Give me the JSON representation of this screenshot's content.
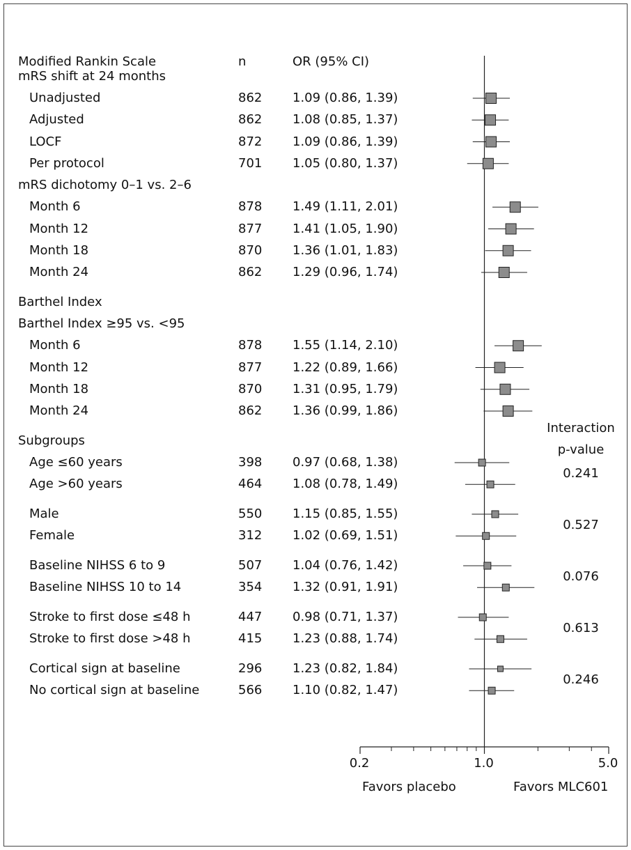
{
  "chart_data": {
    "type": "forest",
    "x_scale": "log",
    "xlim": [
      0.2,
      5.0
    ],
    "null_value": 1.0,
    "xticks": [
      {
        "value": 0.2,
        "label": "0.2"
      },
      {
        "value": 1.0,
        "label": "1.0"
      },
      {
        "value": 5.0,
        "label": "5.0"
      }
    ],
    "minor_ticks": [
      0.3,
      0.4,
      0.5,
      0.6,
      0.7,
      0.8,
      0.9,
      2,
      3,
      4
    ],
    "direction_labels": {
      "left": "Favors placebo",
      "right": "Favors MLC601"
    },
    "column_headers": {
      "label": "Modified Rankin Scale",
      "n": "n",
      "or": "OR (95% CI)"
    },
    "interaction_header": [
      "Interaction",
      "p-value"
    ],
    "rows": [
      {
        "label": "mRS shift at 24 months",
        "indent": 0
      },
      {
        "label": "Unadjusted",
        "indent": 1,
        "n": "862",
        "or_text": "1.09 (0.86, 1.39)",
        "or": 1.09,
        "lo": 0.86,
        "hi": 1.39,
        "size": "large"
      },
      {
        "label": "Adjusted",
        "indent": 1,
        "n": "862",
        "or_text": "1.08 (0.85, 1.37)",
        "or": 1.08,
        "lo": 0.85,
        "hi": 1.37,
        "size": "large"
      },
      {
        "label": "LOCF",
        "indent": 1,
        "n": "872",
        "or_text": "1.09 (0.86, 1.39)",
        "or": 1.09,
        "lo": 0.86,
        "hi": 1.39,
        "size": "large"
      },
      {
        "label": "Per protocol",
        "indent": 1,
        "n": "701",
        "or_text": "1.05 (0.80, 1.37)",
        "or": 1.05,
        "lo": 0.8,
        "hi": 1.37,
        "size": "large"
      },
      {
        "label": "mRS dichotomy 0–1 vs. 2–6",
        "indent": 0
      },
      {
        "label": "Month 6",
        "indent": 1,
        "n": "878",
        "or_text": "1.49 (1.11, 2.01)",
        "or": 1.49,
        "lo": 1.11,
        "hi": 2.01,
        "size": "large"
      },
      {
        "label": "Month 12",
        "indent": 1,
        "n": "877",
        "or_text": "1.41 (1.05, 1.90)",
        "or": 1.41,
        "lo": 1.05,
        "hi": 1.9,
        "size": "large"
      },
      {
        "label": "Month 18",
        "indent": 1,
        "n": "870",
        "or_text": "1.36 (1.01, 1.83)",
        "or": 1.36,
        "lo": 1.01,
        "hi": 1.83,
        "size": "large"
      },
      {
        "label": "Month 24",
        "indent": 1,
        "n": "862",
        "or_text": "1.29 (0.96, 1.74)",
        "or": 1.29,
        "lo": 0.96,
        "hi": 1.74,
        "size": "large"
      },
      {
        "label": "Barthel Index",
        "indent": 0,
        "gap_before": true
      },
      {
        "label": "Barthel Index ≥95 vs. <95",
        "indent": 0
      },
      {
        "label": "Month 6",
        "indent": 1,
        "n": "878",
        "or_text": "1.55 (1.14, 2.10)",
        "or": 1.55,
        "lo": 1.14,
        "hi": 2.1,
        "size": "large"
      },
      {
        "label": "Month 12",
        "indent": 1,
        "n": "877",
        "or_text": "1.22 (0.89, 1.66)",
        "or": 1.22,
        "lo": 0.89,
        "hi": 1.66,
        "size": "large"
      },
      {
        "label": "Month 18",
        "indent": 1,
        "n": "870",
        "or_text": "1.31 (0.95, 1.79)",
        "or": 1.31,
        "lo": 0.95,
        "hi": 1.79,
        "size": "large"
      },
      {
        "label": "Month 24",
        "indent": 1,
        "n": "862",
        "or_text": "1.36 (0.99, 1.86)",
        "or": 1.36,
        "lo": 0.99,
        "hi": 1.86,
        "size": "large"
      },
      {
        "label": "Subgroups",
        "indent": 0,
        "gap_before": true
      },
      {
        "label": "Age ≤60 years",
        "indent": 1,
        "n": "398",
        "or_text": "0.97 (0.68, 1.38)",
        "or": 0.97,
        "lo": 0.68,
        "hi": 1.38,
        "size": "small"
      },
      {
        "label": "Age >60 years",
        "indent": 1,
        "n": "464",
        "or_text": "1.08 (0.78, 1.49)",
        "or": 1.08,
        "lo": 0.78,
        "hi": 1.49,
        "size": "small"
      },
      {
        "label": "Male",
        "indent": 1,
        "n": "550",
        "or_text": "1.15 (0.85, 1.55)",
        "or": 1.15,
        "lo": 0.85,
        "hi": 1.55,
        "size": "small",
        "gap_before": true
      },
      {
        "label": "Female",
        "indent": 1,
        "n": "312",
        "or_text": "1.02 (0.69, 1.51)",
        "or": 1.02,
        "lo": 0.69,
        "hi": 1.51,
        "size": "small"
      },
      {
        "label": "Baseline NIHSS 6 to 9",
        "indent": 1,
        "n": "507",
        "or_text": "1.04 (0.76, 1.42)",
        "or": 1.04,
        "lo": 0.76,
        "hi": 1.42,
        "size": "small",
        "gap_before": true
      },
      {
        "label": "Baseline NIHSS 10 to 14",
        "indent": 1,
        "n": "354",
        "or_text": "1.32 (0.91, 1.91)",
        "or": 1.32,
        "lo": 0.91,
        "hi": 1.91,
        "size": "small"
      },
      {
        "label": "Stroke to first dose ≤48 h",
        "indent": 1,
        "n": "447",
        "or_text": "0.98 (0.71, 1.37)",
        "or": 0.98,
        "lo": 0.71,
        "hi": 1.37,
        "size": "small",
        "gap_before": true
      },
      {
        "label": "Stroke to first dose >48 h",
        "indent": 1,
        "n": "415",
        "or_text": "1.23 (0.88, 1.74)",
        "or": 1.23,
        "lo": 0.88,
        "hi": 1.74,
        "size": "small"
      },
      {
        "label": "Cortical sign at baseline",
        "indent": 1,
        "n": "296",
        "or_text": "1.23 (0.82, 1.84)",
        "or": 1.23,
        "lo": 0.82,
        "hi": 1.84,
        "size": "tiny",
        "gap_before": true
      },
      {
        "label": "No cortical sign at baseline",
        "indent": 1,
        "n": "566",
        "or_text": "1.10 (0.82, 1.47)",
        "or": 1.1,
        "lo": 0.82,
        "hi": 1.47,
        "size": "small"
      }
    ],
    "interaction_pvalues": [
      {
        "value": "0.241",
        "rows": [
          17,
          18
        ]
      },
      {
        "value": "0.527",
        "rows": [
          19,
          20
        ]
      },
      {
        "value": "0.076",
        "rows": [
          21,
          22
        ]
      },
      {
        "value": "0.613",
        "rows": [
          23,
          24
        ]
      },
      {
        "value": "0.246",
        "rows": [
          25,
          26
        ]
      }
    ],
    "colors": {
      "marker_fill": "#8c8c8c",
      "marker_stroke": "#222222",
      "line": "#222222",
      "border": "#444444"
    }
  }
}
